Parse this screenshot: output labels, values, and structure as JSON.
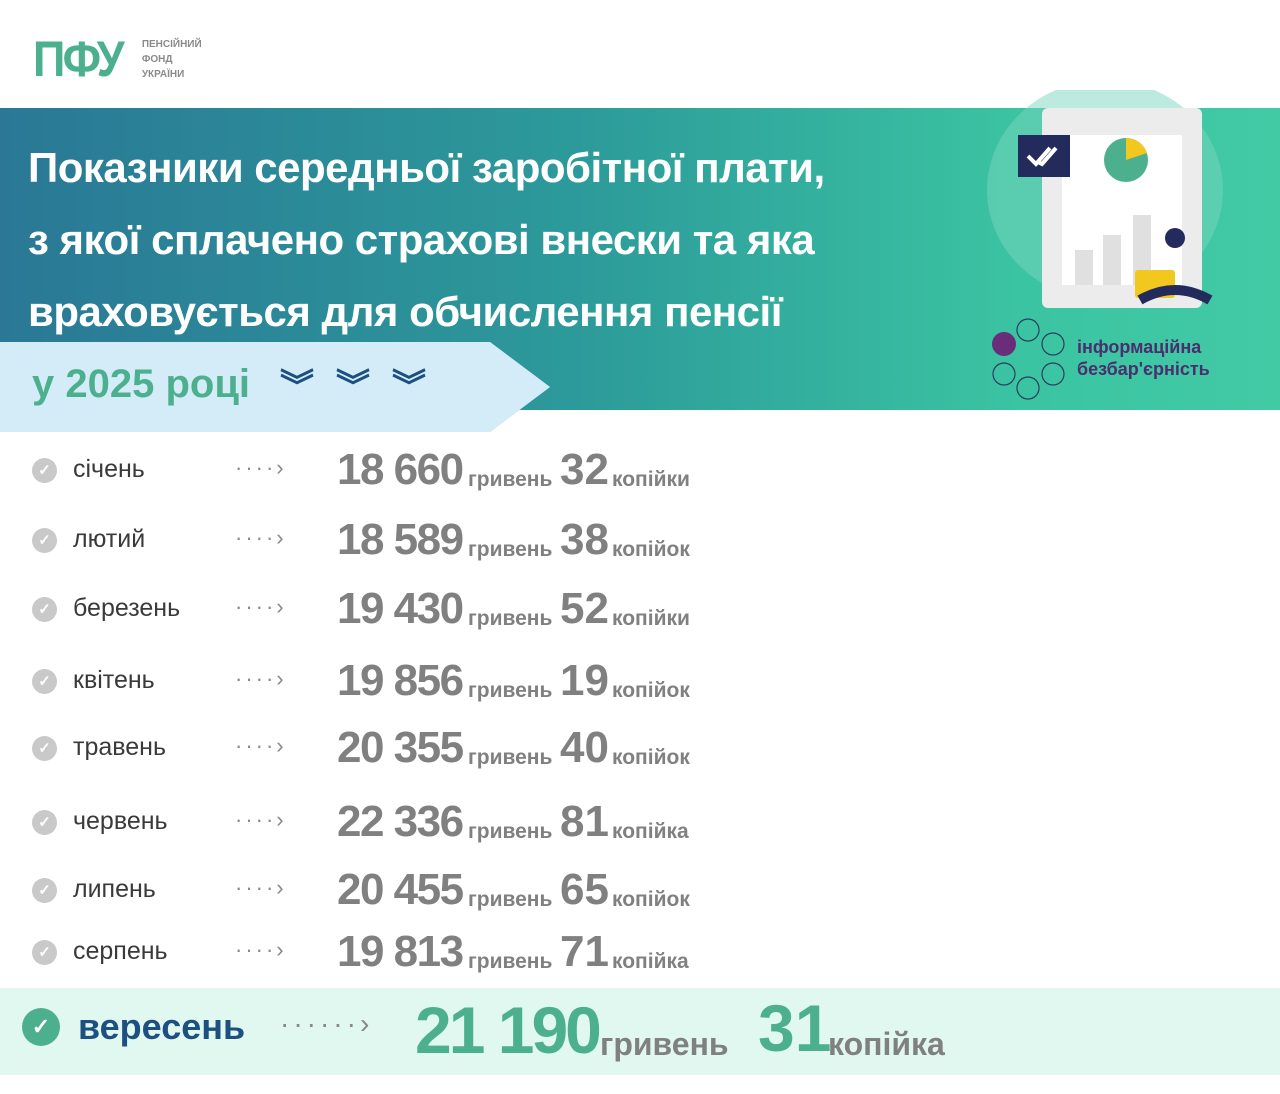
{
  "logo": {
    "mark": "ПФУ",
    "line1": "ПЕНСІЙНИЙ",
    "line2": "ФОНД",
    "line3": "УКРАЇНИ"
  },
  "title": [
    "Показники середньої заробітної плати,",
    "з якої сплачено страхові внески та яка",
    "враховується для обчислення пенсії"
  ],
  "year_label": "у 2025 році",
  "badge": {
    "line1": "інформаційна",
    "line2": "безбар'єрність"
  },
  "colors": {
    "brand": "#4cb08f",
    "banner_start": "#2a7896",
    "banner_end": "#42caa5",
    "band": "#d4ecf8",
    "chevrons": "#1d4f80",
    "highlight": "#e0f8ef",
    "badge_text": "#4a2e6e"
  },
  "rows": [
    {
      "month": "січень",
      "hryvnia": "18 660",
      "hryvnia_unit": "гривень",
      "kopecks": "32",
      "kopecks_unit": "копійки"
    },
    {
      "month": "лютий",
      "hryvnia": "18 589",
      "hryvnia_unit": "гривень",
      "kopecks": "38",
      "kopecks_unit": "копійок"
    },
    {
      "month": "березень",
      "hryvnia": "19 430",
      "hryvnia_unit": "гривень",
      "kopecks": "52",
      "kopecks_unit": "копійки"
    },
    {
      "month": "квітень",
      "hryvnia": "19 856",
      "hryvnia_unit": "гривень",
      "kopecks": "19",
      "kopecks_unit": "копійок"
    },
    {
      "month": "травень",
      "hryvnia": "20 355",
      "hryvnia_unit": "гривень",
      "kopecks": "40",
      "kopecks_unit": "копійок"
    },
    {
      "month": "червень",
      "hryvnia": "22 336",
      "hryvnia_unit": "гривень",
      "kopecks": "81",
      "kopecks_unit": "копійка"
    },
    {
      "month": "липень",
      "hryvnia": "20 455",
      "hryvnia_unit": "гривень",
      "kopecks": "65",
      "kopecks_unit": "копійок"
    },
    {
      "month": "серпень",
      "hryvnia": "19 813",
      "hryvnia_unit": "гривень",
      "kopecks": "71",
      "kopecks_unit": "копійка"
    }
  ],
  "highlight": {
    "month": "вересень",
    "hryvnia": "21 190",
    "hryvnia_unit": "гривень",
    "kopecks": "31",
    "kopecks_unit": "копійка"
  }
}
